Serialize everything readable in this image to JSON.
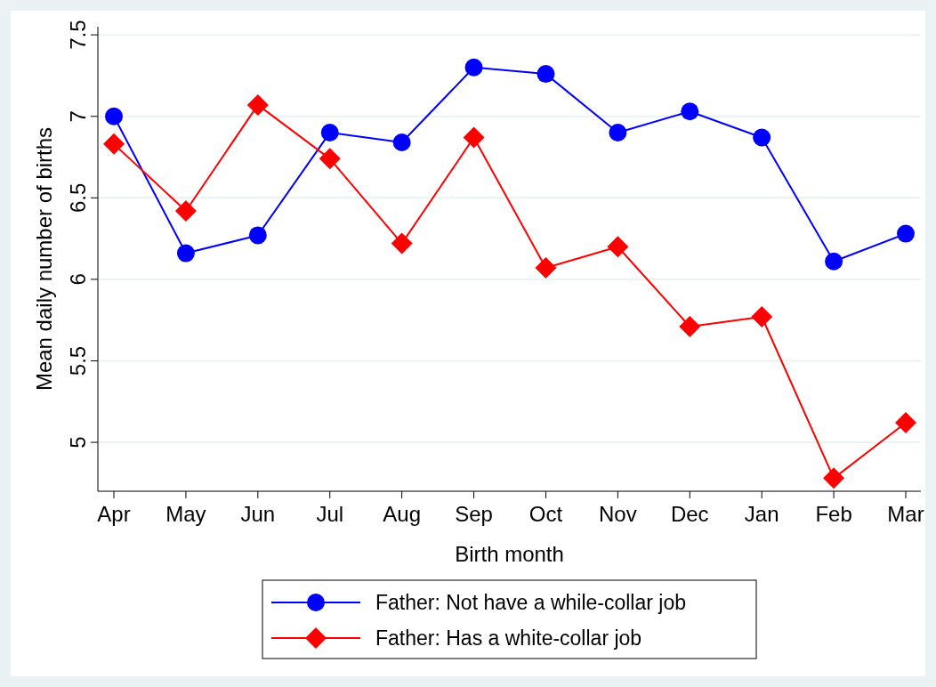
{
  "chart_data": {
    "type": "line",
    "xlabel": "Birth month",
    "ylabel": "Mean daily number of births",
    "categories": [
      "Apr",
      "May",
      "Jun",
      "Jul",
      "Aug",
      "Sep",
      "Oct",
      "Nov",
      "Dec",
      "Jan",
      "Feb",
      "Mar"
    ],
    "series": [
      {
        "name": "Father: Not have a while-collar job",
        "color": "#0000ff",
        "marker": "circle",
        "values": [
          7.0,
          6.16,
          6.27,
          6.9,
          6.84,
          7.3,
          7.26,
          6.9,
          7.03,
          6.87,
          6.11,
          6.28
        ]
      },
      {
        "name": "Father: Has a white-collar job",
        "color": "#ff0000",
        "marker": "diamond",
        "values": [
          6.83,
          6.42,
          7.07,
          6.74,
          6.22,
          6.87,
          6.07,
          6.2,
          5.71,
          5.77,
          4.78,
          5.12
        ]
      }
    ],
    "ylim": [
      4.7,
      7.55
    ],
    "yticks": [
      5,
      5.5,
      6,
      6.5,
      7,
      7.5
    ],
    "grid": "y",
    "legend": "bottom",
    "line_style": "solid"
  }
}
